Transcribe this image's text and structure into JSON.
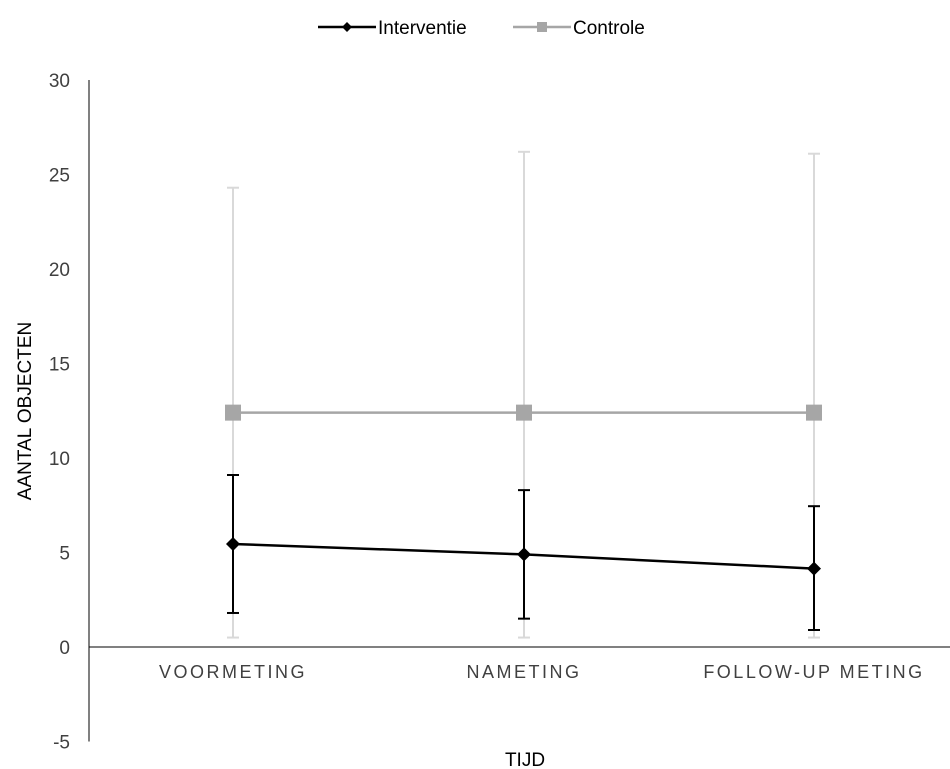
{
  "chart_data": {
    "type": "line",
    "categories": [
      "VOORMETING",
      "NAMETING",
      "FOLLOW-UP METING"
    ],
    "xlabel": "TIJD",
    "ylabel": "AANTAL OBJECTEN",
    "ylim": [
      -5,
      30
    ],
    "yticks": [
      -5,
      0,
      5,
      10,
      15,
      20,
      25,
      30
    ],
    "grid": false,
    "legend_position": "top-center",
    "series": [
      {
        "name": "Interventie",
        "color": "#000000",
        "marker": "diamond",
        "values": [
          5.45,
          4.9,
          4.15
        ],
        "error_low": [
          1.8,
          1.5,
          0.9
        ],
        "error_high": [
          9.1,
          8.3,
          7.45
        ]
      },
      {
        "name": "Controle",
        "color": "#a6a6a6",
        "error_color": "#d9d9d9",
        "marker": "square",
        "values": [
          12.4,
          12.4,
          12.4
        ],
        "error_low": [
          0.5,
          0.5,
          0.5
        ],
        "error_high": [
          24.3,
          26.2,
          26.1
        ]
      }
    ]
  }
}
